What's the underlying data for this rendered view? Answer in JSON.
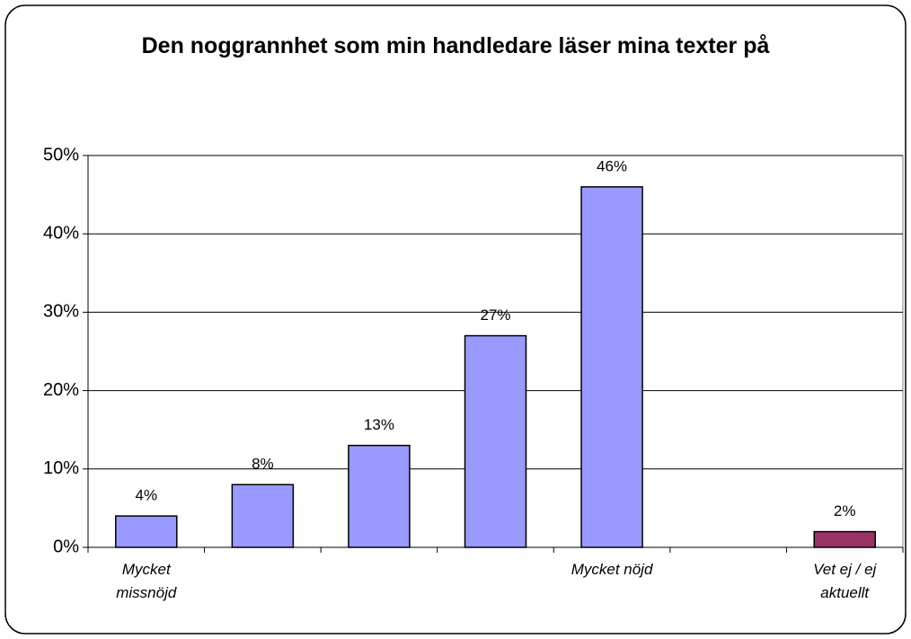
{
  "chart_data": {
    "type": "bar",
    "title": "Den noggrannhet som min handledare läser mina texter på",
    "categories": [
      "Mycket missnöjd",
      null,
      null,
      null,
      "Mycket nöjd",
      null,
      "Vet ej / ej aktuellt"
    ],
    "values": [
      4,
      8,
      13,
      27,
      46,
      null,
      2
    ],
    "value_labels": [
      "4%",
      "8%",
      "13%",
      "27%",
      "46%",
      null,
      "2%"
    ],
    "colors": [
      "#9999ff",
      "#9999ff",
      "#9999ff",
      "#9999ff",
      "#9999ff",
      null,
      "#993366"
    ],
    "ylim": [
      0,
      50
    ],
    "yticks": [
      {
        "value": 0,
        "label": "0%"
      },
      {
        "value": 10,
        "label": "10%"
      },
      {
        "value": 20,
        "label": "20%"
      },
      {
        "value": 30,
        "label": "30%"
      },
      {
        "value": 40,
        "label": "40%"
      },
      {
        "value": 50,
        "label": "50%"
      }
    ],
    "grid": true
  }
}
